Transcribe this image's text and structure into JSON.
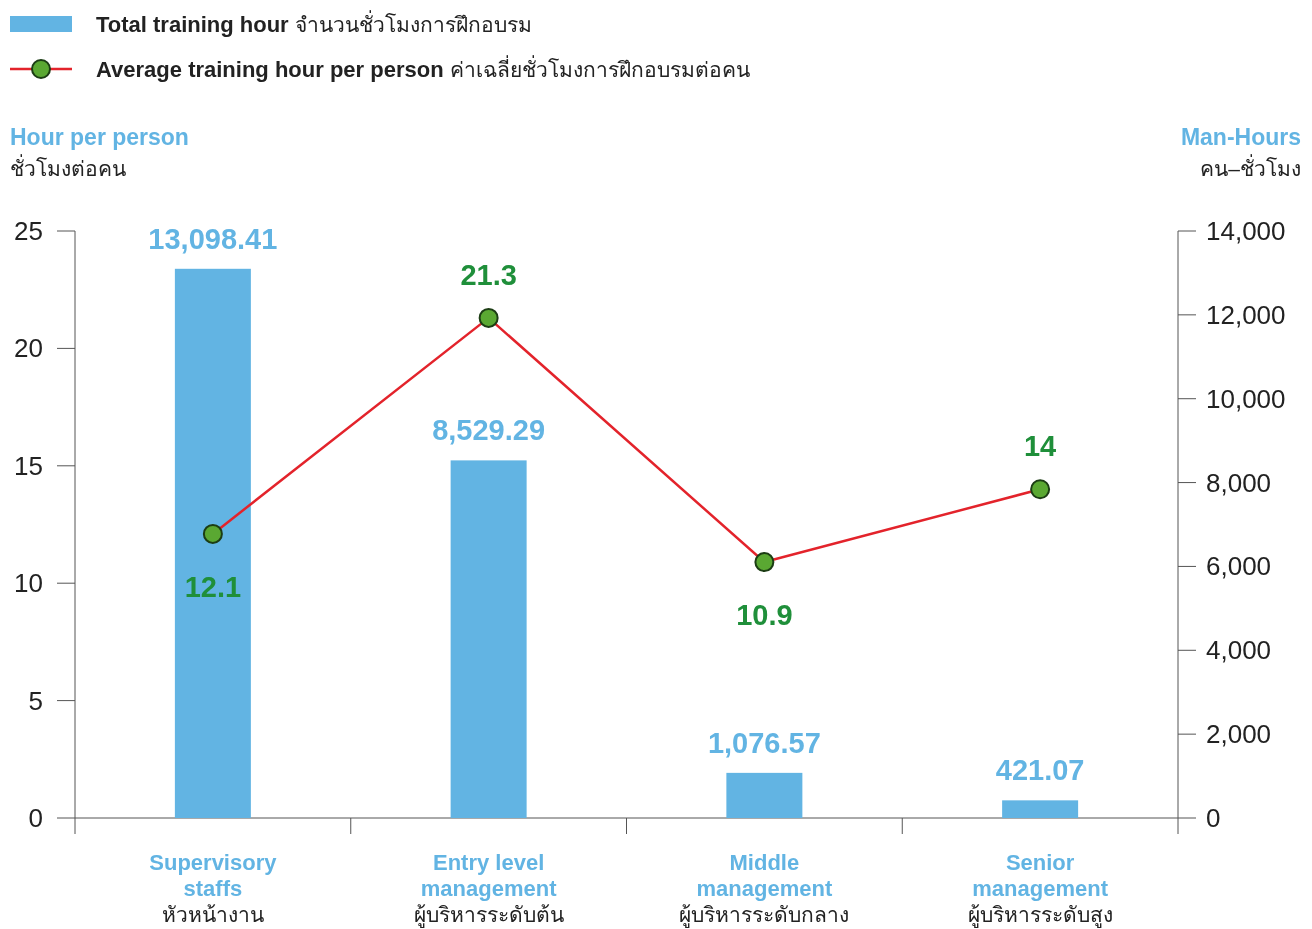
{
  "chart_data": {
    "type": "bar",
    "categories": [
      "Supervisory staffs หัวหน้างาน",
      "Entry level management ผู้บริหารระดับต้น",
      "Middle management ผู้บริหารระดับกลาง",
      "Senior management ผู้บริหารระดับสูง"
    ],
    "series": [
      {
        "name": "Total training hour จำนวนชั่วโมงการฝึกอบรม",
        "axis": "y2",
        "color": "#62b4e3",
        "values": [
          13098.41,
          8529.29,
          1076.57,
          421.07
        ],
        "value_labels": [
          "13,098.41",
          "8,529.29",
          "1,076.57",
          "421.07"
        ]
      },
      {
        "name": "Average training hour per person ค่าเฉลี่ยชั่วโมงการฝึกอบรมต่อคน",
        "type": "line",
        "axis": "y",
        "color": "#e3232b",
        "marker": "circle",
        "values": [
          12.1,
          21.3,
          10.9,
          14
        ]
      }
    ],
    "ylabel": "Hour per person ชั่วโมงต่อคน",
    "y2label": "Man-Hours คน–ชั่วโมง",
    "ylim": [
      0,
      25
    ],
    "yticks": [
      0,
      5,
      10,
      15,
      20,
      25
    ],
    "y2lim": [
      0,
      14000
    ],
    "y2ticks": [
      0,
      {
        "value": 2000,
        "label": "2,000"
      },
      {
        "value": 4000,
        "label": "4,000"
      },
      {
        "value": 6000,
        "label": "6,000"
      },
      {
        "value": 8000,
        "label": "8,000"
      },
      {
        "value": 10000,
        "label": "10,000"
      },
      {
        "value": 12000,
        "label": "12,000"
      },
      {
        "value": 14000,
        "label": "14,000"
      }
    ],
    "data_labels": true,
    "legend": "top left",
    "grid": false
  }
}
